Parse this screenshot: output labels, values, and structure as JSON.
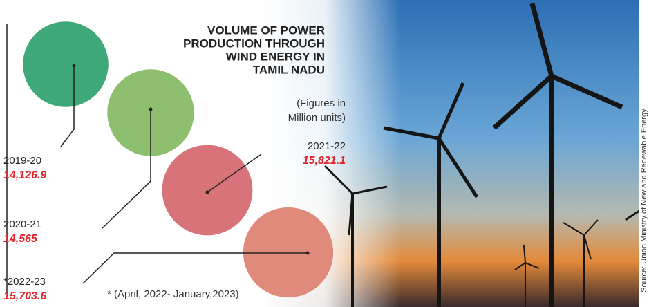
{
  "chart_data": {
    "type": "bubble",
    "title": [
      "VOLUME OF POWER",
      "PRODUCTION THROUGH",
      "WIND ENERGY IN",
      "TAMIL NADU"
    ],
    "subtitle": [
      "(Figures in",
      "Million units)"
    ],
    "categories": [
      "2019-20",
      "2020-21",
      "2021-22",
      "*2022-23"
    ],
    "values": [
      14126.9,
      14565,
      15821.1,
      15703.6
    ],
    "value_labels": [
      "14,126.9",
      "14,565",
      "15,821.1",
      "15,703.6"
    ],
    "colors": [
      "#3fa97a",
      "#8dbf6f",
      "#d9737a",
      "#df8a7a"
    ],
    "note": "* (April, 2022- January,2023)",
    "source": "Source: Union Ministry of New and Renewable Energy"
  }
}
